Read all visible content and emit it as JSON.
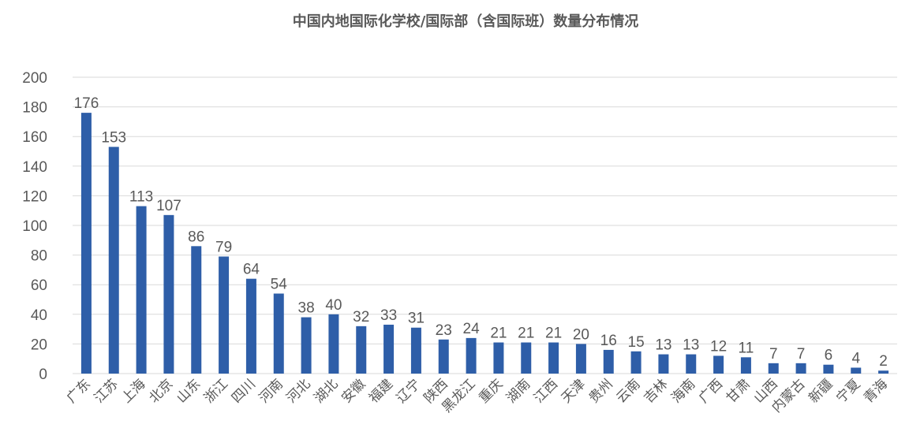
{
  "chart_data": {
    "type": "bar",
    "title": "中国内地国际化学校/国际部（含国际班）数量分布情况",
    "xlabel": "",
    "ylabel": "",
    "ylim": [
      0,
      200
    ],
    "yticks": [
      0,
      20,
      40,
      60,
      80,
      100,
      120,
      140,
      160,
      180,
      200
    ],
    "grid": true,
    "bar_color": "#2e5ea8",
    "categories": [
      "广东",
      "江苏",
      "上海",
      "北京",
      "山东",
      "浙江",
      "四川",
      "河南",
      "河北",
      "湖北",
      "安徽",
      "福建",
      "辽宁",
      "陕西",
      "黑龙江",
      "重庆",
      "湖南",
      "江西",
      "天津",
      "贵州",
      "云南",
      "吉林",
      "海南",
      "广西",
      "甘肃",
      "山西",
      "内蒙古",
      "新疆",
      "宁夏",
      "青海"
    ],
    "values": [
      176,
      153,
      113,
      107,
      86,
      79,
      64,
      54,
      38,
      40,
      32,
      33,
      31,
      23,
      24,
      21,
      21,
      21,
      20,
      16,
      15,
      13,
      13,
      12,
      11,
      7,
      7,
      6,
      4,
      2
    ]
  }
}
